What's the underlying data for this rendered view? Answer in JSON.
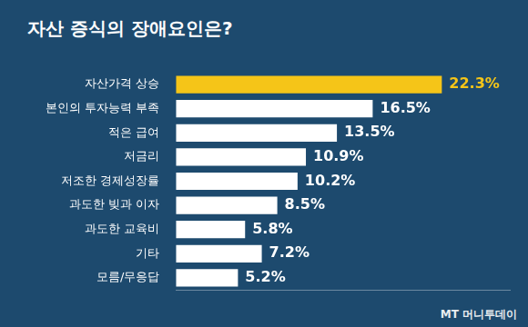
{
  "chart_data": {
    "type": "bar",
    "title": "자산 증식의 장애요인은?",
    "orientation": "horizontal",
    "categories": [
      "자산가격 상승",
      "본인의 투자능력 부족",
      "적은 급여",
      "저금리",
      "저조한 경제성장률",
      "과도한 빚과 이자",
      "과도한 교육비",
      "기타",
      "모름/무응답"
    ],
    "values": [
      22.3,
      16.5,
      13.5,
      10.9,
      10.2,
      8.5,
      5.8,
      7.2,
      5.2
    ],
    "value_labels": [
      "22.3%",
      "16.5%",
      "13.5%",
      "10.9%",
      "10.2%",
      "8.5%",
      "5.8%",
      "7.2%",
      "5.2%"
    ],
    "colors": [
      "#f5c518",
      "#ffffff",
      "#ffffff",
      "#ffffff",
      "#ffffff",
      "#ffffff",
      "#ffffff",
      "#ffffff",
      "#ffffff"
    ],
    "data_labels": true,
    "tick_labels": "y",
    "grid": false,
    "xlim": [
      0,
      28
    ],
    "xticks": [],
    "annotations": [
      "MT 머니투데이"
    ]
  }
}
